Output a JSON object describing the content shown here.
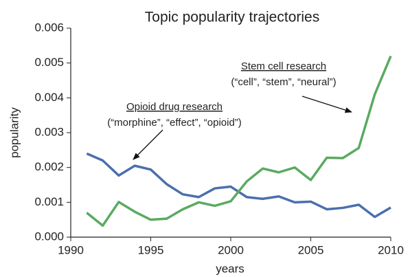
{
  "chart_data": {
    "type": "line",
    "title": "Topic popularity trajectories",
    "x_label": "years",
    "y_label": "popularity",
    "x": [
      1991,
      1992,
      1993,
      1994,
      1995,
      1996,
      1997,
      1998,
      1999,
      2000,
      2001,
      2002,
      2003,
      2004,
      2005,
      2006,
      2007,
      2008,
      2009,
      2010
    ],
    "series": [
      {
        "name": "Opioid drug research",
        "keywords": "(“morphine”, “effect”, “opioid”)",
        "color": "#4a6fad",
        "values": [
          0.0024,
          0.0022,
          0.00177,
          0.00205,
          0.00194,
          0.00152,
          0.00123,
          0.00115,
          0.0014,
          0.00145,
          0.00115,
          0.0011,
          0.00117,
          0.001,
          0.00102,
          0.0008,
          0.00084,
          0.00093,
          0.00058,
          0.00085
        ]
      },
      {
        "name": "Stem cell research",
        "keywords": "(“cell”, “stem”, “neural”)",
        "color": "#5aaa60",
        "values": [
          0.0007,
          0.00033,
          0.00101,
          0.00073,
          0.0005,
          0.00053,
          0.0008,
          0.001,
          0.0009,
          0.00103,
          0.0016,
          0.00197,
          0.00186,
          0.002,
          0.00164,
          0.00228,
          0.00227,
          0.00256,
          0.0041,
          0.0052
        ]
      }
    ],
    "xlim": [
      1990,
      2010
    ],
    "xticks": [
      1990,
      1995,
      2000,
      2005,
      2010
    ],
    "ylim": [
      0,
      0.006
    ],
    "yticks": [
      {
        "value": 0,
        "label": "0.000"
      },
      {
        "value": 0.001,
        "label": "0.001"
      },
      {
        "value": 0.002,
        "label": "0.002"
      },
      {
        "value": 0.003,
        "label": "0.003"
      },
      {
        "value": 0.004,
        "label": "0.004"
      },
      {
        "value": 0.005,
        "label": "0.005"
      },
      {
        "value": 0.006,
        "label": "0.006"
      }
    ],
    "grid": false
  }
}
